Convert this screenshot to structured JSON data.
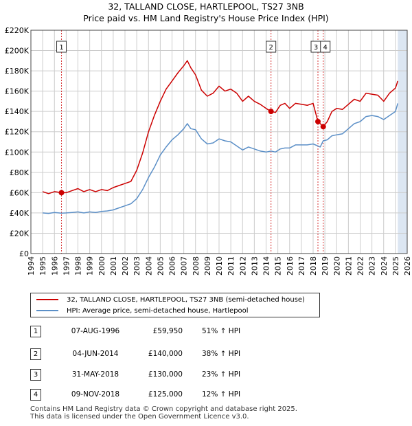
{
  "title_line1": "32, TALLAND CLOSE, HARTLEPOOL, TS27 3NB",
  "title_line2": "Price paid vs. HM Land Registry's House Price Index (HPI)",
  "colors": {
    "property": "#cc0000",
    "hpi": "#5b8fc7",
    "shade": "#dce6f2",
    "grid": "#cccccc",
    "marker": "#cc0000"
  },
  "legend": {
    "property": "32, TALLAND CLOSE, HARTLEPOOL, TS27 3NB (semi-detached house)",
    "hpi": "HPI: Average price, semi-detached house, Hartlepool"
  },
  "transactions": [
    {
      "num": "1",
      "date": "07-AUG-1996",
      "price": "£59,950",
      "hpi": "51% ↑ HPI"
    },
    {
      "num": "2",
      "date": "04-JUN-2014",
      "price": "£140,000",
      "hpi": "38% ↑ HPI"
    },
    {
      "num": "3",
      "date": "31-MAY-2018",
      "price": "£130,000",
      "hpi": "23% ↑ HPI"
    },
    {
      "num": "4",
      "date": "09-NOV-2018",
      "price": "£125,000",
      "hpi": "12% ↑ HPI"
    }
  ],
  "footer_line1": "Contains HM Land Registry data © Crown copyright and database right 2025.",
  "footer_line2": "This data is licensed under the Open Government Licence v3.0.",
  "chart_data": {
    "type": "line",
    "xlim": [
      1994,
      2026
    ],
    "ylim": [
      0,
      220000
    ],
    "x_ticks": [
      "1994",
      "1995",
      "1996",
      "1997",
      "1998",
      "1999",
      "2000",
      "2001",
      "2002",
      "2003",
      "2004",
      "2005",
      "2006",
      "2007",
      "2008",
      "2009",
      "2010",
      "2011",
      "2012",
      "2013",
      "2014",
      "2015",
      "2016",
      "2017",
      "2018",
      "2019",
      "2020",
      "2021",
      "2022",
      "2023",
      "2024",
      "2025",
      "2026"
    ],
    "y_ticks": [
      {
        "value": 0,
        "label": "£0"
      },
      {
        "value": 20000,
        "label": "£20K"
      },
      {
        "value": 40000,
        "label": "£40K"
      },
      {
        "value": 60000,
        "label": "£60K"
      },
      {
        "value": 80000,
        "label": "£80K"
      },
      {
        "value": 100000,
        "label": "£100K"
      },
      {
        "value": 120000,
        "label": "£120K"
      },
      {
        "value": 140000,
        "label": "£140K"
      },
      {
        "value": 160000,
        "label": "£160K"
      },
      {
        "value": 180000,
        "label": "£180K"
      },
      {
        "value": 200000,
        "label": "£200K"
      },
      {
        "value": 220000,
        "label": "£220K"
      }
    ],
    "grid": true,
    "data_end_shading_from": 2025.2,
    "series": [
      {
        "name": "32, TALLAND CLOSE, HARTLEPOOL, TS27 3NB (semi-detached house)",
        "x": [
          1995.0,
          1995.5,
          1996.0,
          1996.6,
          1997.0,
          1997.5,
          1998.0,
          1998.5,
          1999.0,
          1999.5,
          2000.0,
          2000.5,
          2001.0,
          2001.5,
          2002.0,
          2002.5,
          2003.0,
          2003.5,
          2004.0,
          2004.5,
          2005.0,
          2005.5,
          2006.0,
          2006.5,
          2007.0,
          2007.3,
          2007.6,
          2008.0,
          2008.5,
          2009.0,
          2009.5,
          2010.0,
          2010.5,
          2011.0,
          2011.5,
          2012.0,
          2012.5,
          2013.0,
          2013.5,
          2014.0,
          2014.42,
          2014.8,
          2015.2,
          2015.6,
          2016.0,
          2016.5,
          2017.0,
          2017.5,
          2018.0,
          2018.41,
          2018.6,
          2018.86,
          2019.2,
          2019.6,
          2020.0,
          2020.5,
          2021.0,
          2021.5,
          2022.0,
          2022.5,
          2023.0,
          2023.5,
          2024.0,
          2024.5,
          2025.0,
          2025.2
        ],
        "y": [
          61000,
          59000,
          61000,
          59950,
          60000,
          62000,
          64000,
          61000,
          63000,
          61000,
          63000,
          62000,
          65000,
          67000,
          69000,
          71000,
          82000,
          99000,
          120000,
          136000,
          150000,
          162000,
          170000,
          178000,
          185000,
          190000,
          183000,
          176000,
          161000,
          155000,
          158000,
          165000,
          160000,
          162000,
          158000,
          150000,
          155000,
          150000,
          147000,
          143000,
          140000,
          139000,
          146000,
          148000,
          143000,
          148000,
          147000,
          146000,
          148000,
          130000,
          128000,
          125000,
          130000,
          140000,
          143000,
          142000,
          147000,
          152000,
          150000,
          158000,
          157000,
          156000,
          150000,
          158000,
          163000,
          170000
        ]
      },
      {
        "name": "HPI: Average price, semi-detached house, Hartlepool",
        "x": [
          1995.0,
          1995.5,
          1996.0,
          1996.6,
          1997.0,
          1997.5,
          1998.0,
          1998.5,
          1999.0,
          1999.5,
          2000.0,
          2000.5,
          2001.0,
          2001.5,
          2002.0,
          2002.5,
          2003.0,
          2003.5,
          2004.0,
          2004.5,
          2005.0,
          2005.5,
          2006.0,
          2006.5,
          2007.0,
          2007.3,
          2007.6,
          2008.0,
          2008.5,
          2009.0,
          2009.5,
          2010.0,
          2010.5,
          2011.0,
          2011.5,
          2012.0,
          2012.5,
          2013.0,
          2013.5,
          2014.0,
          2014.42,
          2014.8,
          2015.2,
          2015.6,
          2016.0,
          2016.5,
          2017.0,
          2017.5,
          2018.0,
          2018.41,
          2018.6,
          2018.86,
          2019.2,
          2019.6,
          2020.0,
          2020.5,
          2021.0,
          2021.5,
          2022.0,
          2022.5,
          2023.0,
          2023.5,
          2024.0,
          2024.5,
          2025.0,
          2025.2
        ],
        "y": [
          40000,
          39500,
          40500,
          39800,
          40000,
          40500,
          41000,
          40000,
          41000,
          40500,
          41500,
          42000,
          43000,
          45000,
          47000,
          49000,
          54000,
          63000,
          75000,
          85000,
          97000,
          105000,
          112000,
          117000,
          123000,
          128000,
          123000,
          122000,
          113000,
          108000,
          109000,
          113000,
          111000,
          110000,
          106000,
          102000,
          105000,
          103000,
          101000,
          100000,
          101000,
          100000,
          103000,
          104000,
          104000,
          107000,
          107000,
          107000,
          108000,
          106000,
          105000,
          111000,
          112000,
          116000,
          117000,
          118000,
          123000,
          128000,
          130000,
          135000,
          136000,
          135000,
          132000,
          136000,
          140000,
          148000
        ]
      }
    ],
    "transactions": [
      {
        "label": "1",
        "x": 1996.6,
        "y": 59950
      },
      {
        "label": "2",
        "x": 2014.42,
        "y": 140000
      },
      {
        "label": "3",
        "x": 2018.41,
        "y": 130000
      },
      {
        "label": "4",
        "x": 2018.86,
        "y": 125000
      }
    ]
  }
}
